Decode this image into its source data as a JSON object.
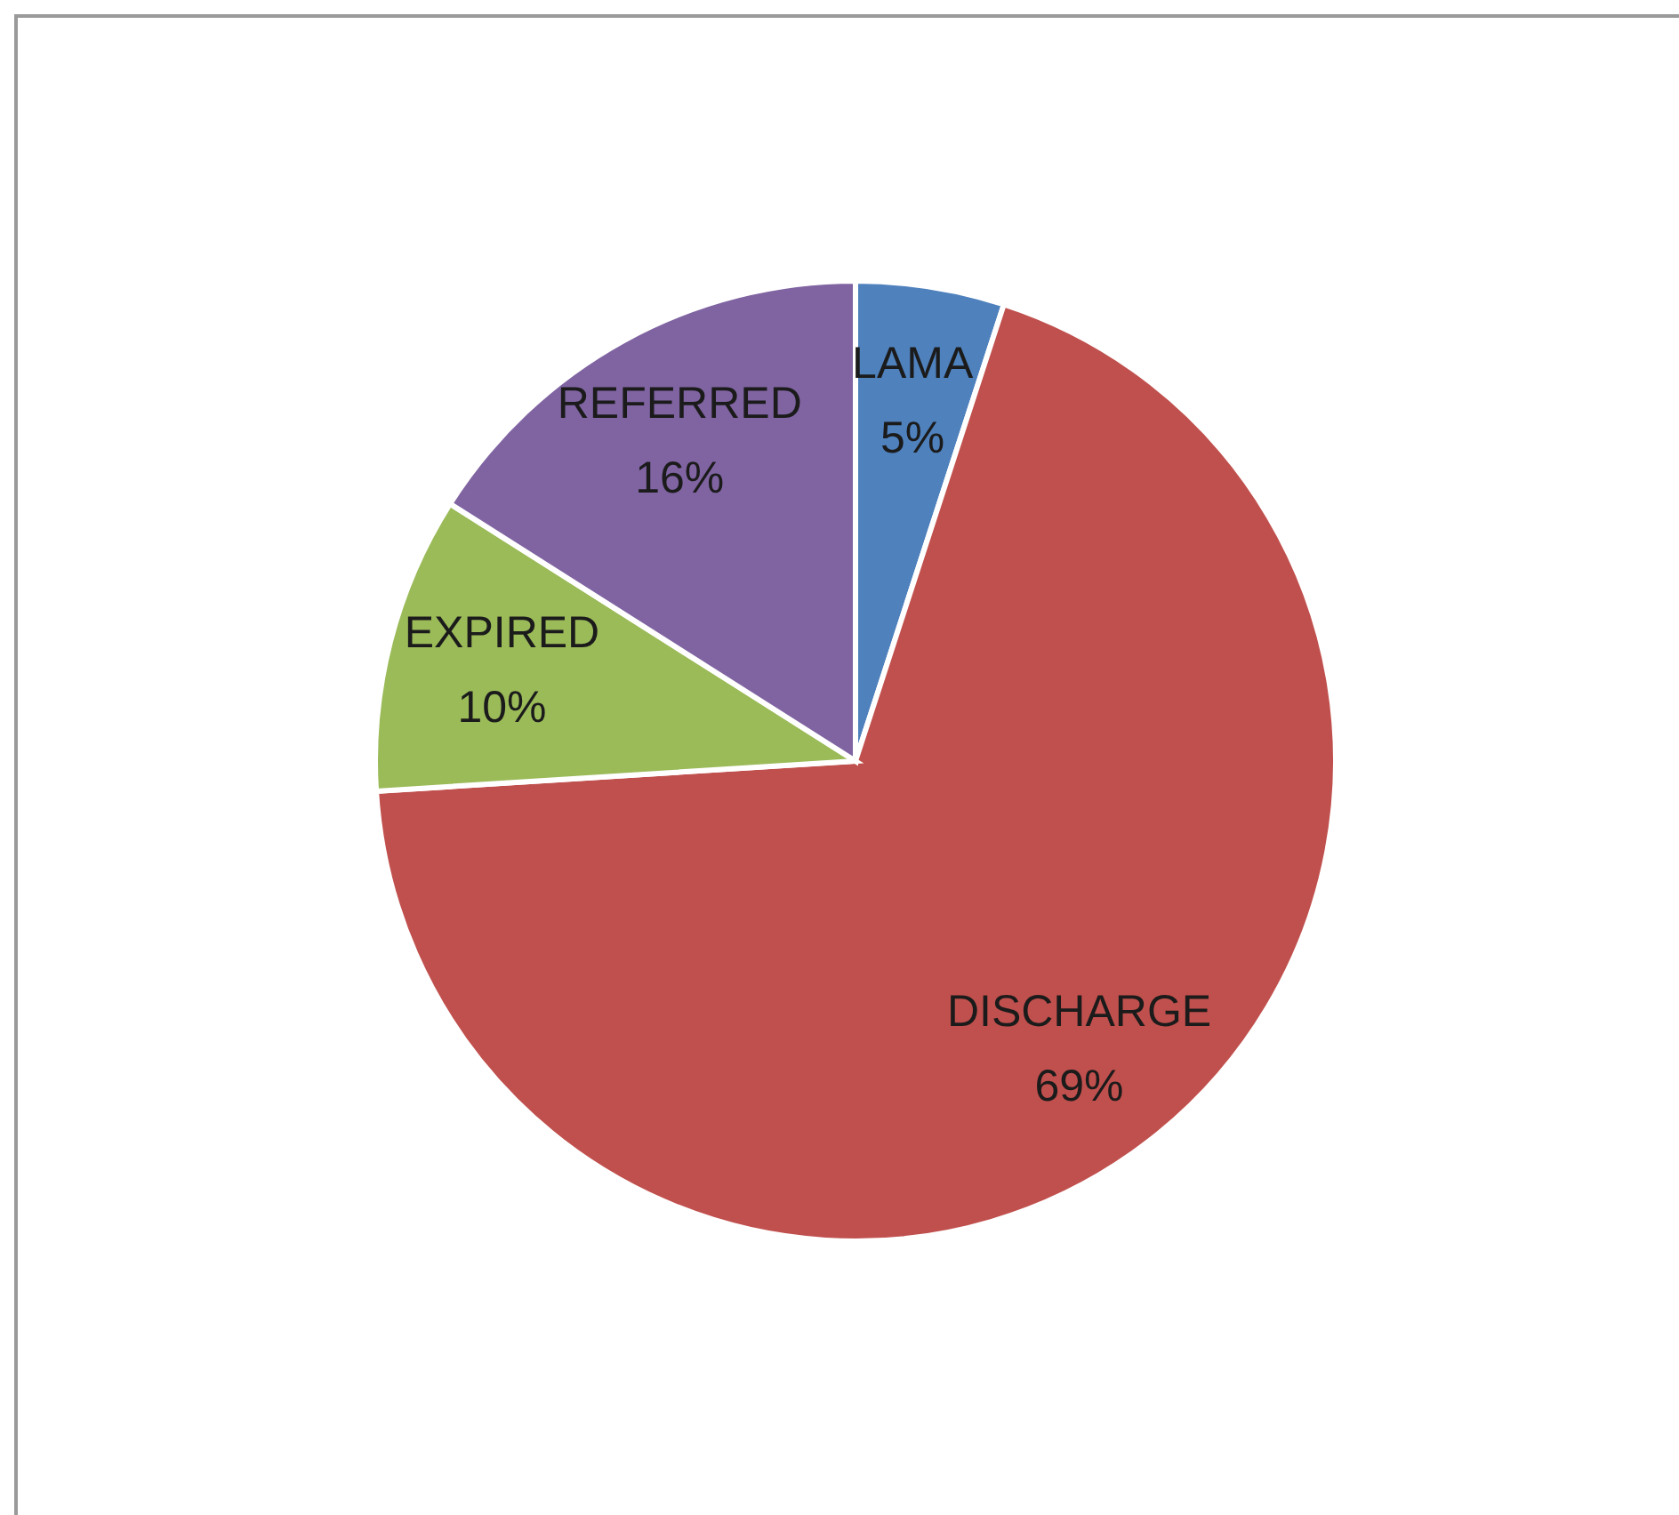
{
  "chart_data": {
    "type": "pie",
    "categories": [
      "LAMA",
      "DISCHARGE",
      "EXPIRED",
      "REFERRED"
    ],
    "values": [
      5,
      69,
      10,
      16
    ],
    "colors": [
      "#4f81bd",
      "#c0504d",
      "#9bbb59",
      "#8064a2"
    ],
    "value_labels": [
      "5%",
      "69%",
      "10%",
      "16%"
    ]
  }
}
